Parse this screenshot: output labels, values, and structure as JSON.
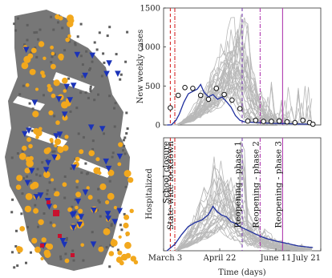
{
  "figure": {
    "map_panel": {
      "legend_items": [
        "gray-cells",
        "orange-circles",
        "blue-triangles",
        "red-squares"
      ],
      "colors": {
        "land": "#777777",
        "orange": "#f2a81d",
        "blue": "#1b33b8",
        "red": "#c8102e"
      }
    }
  },
  "chart_data": [
    {
      "type": "line",
      "ylabel": "New weekly cases",
      "ylim": [
        0,
        1500
      ],
      "yticks": [
        "0",
        "500",
        "1000",
        "1500"
      ],
      "x_domain_days": [
        0,
        133
      ],
      "colors": {
        "ensemble": "#b8b8b8",
        "mean": "#1f2f9e",
        "observed": "#111111"
      },
      "mean_series": [
        [
          3,
          0
        ],
        [
          7,
          2
        ],
        [
          11,
          60
        ],
        [
          14,
          140
        ],
        [
          18,
          290
        ],
        [
          22,
          400
        ],
        [
          26,
          430
        ],
        [
          30,
          460
        ],
        [
          33,
          520
        ],
        [
          36,
          420
        ],
        [
          40,
          360
        ],
        [
          44,
          390
        ],
        [
          48,
          330
        ],
        [
          52,
          360
        ],
        [
          56,
          300
        ],
        [
          60,
          230
        ],
        [
          64,
          120
        ],
        [
          68,
          60
        ],
        [
          72,
          40
        ],
        [
          78,
          35
        ],
        [
          85,
          30
        ],
        [
          92,
          25
        ],
        [
          99,
          20
        ],
        [
          106,
          18
        ],
        [
          113,
          15
        ],
        [
          120,
          12
        ],
        [
          127,
          10
        ],
        [
          133,
          5
        ]
      ],
      "observed_points": [
        [
          6,
          220
        ],
        [
          13,
          380
        ],
        [
          19,
          480
        ],
        [
          26,
          470
        ],
        [
          33,
          380
        ],
        [
          40,
          330
        ],
        [
          47,
          470
        ],
        [
          54,
          390
        ],
        [
          61,
          320
        ],
        [
          68,
          210
        ],
        [
          75,
          50
        ],
        [
          82,
          60
        ],
        [
          89,
          45
        ],
        [
          96,
          45
        ],
        [
          103,
          50
        ],
        [
          110,
          40
        ],
        [
          117,
          30
        ],
        [
          124,
          60
        ],
        [
          130,
          30
        ],
        [
          133,
          10
        ]
      ],
      "vlines": [
        {
          "day": 6,
          "color": "#d62728",
          "style": "dashed"
        },
        {
          "day": 10,
          "color": "#d62728",
          "style": "dashdot"
        },
        {
          "day": 70,
          "color": "#7b3fb0",
          "style": "dashed"
        },
        {
          "day": 86,
          "color": "#b03bb0",
          "style": "dashdot"
        },
        {
          "day": 106,
          "color": "#b03bb0",
          "style": "solid"
        }
      ]
    },
    {
      "type": "line",
      "ylabel": "Hospitalized",
      "xlabel": "Time (days)",
      "xtick_labels": [
        "March 3",
        "April 22",
        "June 11",
        "July 21"
      ],
      "xtick_days": [
        0,
        50,
        100,
        140
      ],
      "annotations": [
        {
          "text": "School closure",
          "day": 6
        },
        {
          "text": "State-wide lockdown",
          "day": 10
        },
        {
          "text": "Reopening - phase 1",
          "day": 70
        },
        {
          "text": "Reopening - phase 2",
          "day": 86
        },
        {
          "text": "Reopening - phase 3",
          "day": 106
        }
      ],
      "mean_series": [
        [
          3,
          0
        ],
        [
          10,
          8
        ],
        [
          16,
          20
        ],
        [
          22,
          30
        ],
        [
          28,
          35
        ],
        [
          34,
          38
        ],
        [
          40,
          45
        ],
        [
          44,
          55
        ],
        [
          48,
          48
        ],
        [
          52,
          44
        ],
        [
          56,
          42
        ],
        [
          60,
          36
        ],
        [
          64,
          34
        ],
        [
          68,
          30
        ],
        [
          74,
          26
        ],
        [
          80,
          22
        ],
        [
          86,
          18
        ],
        [
          92,
          15
        ],
        [
          100,
          12
        ],
        [
          110,
          9
        ],
        [
          120,
          6
        ],
        [
          133,
          4
        ]
      ],
      "ymax_units": 140,
      "colors": {
        "ensemble": "#b8b8b8",
        "mean": "#1f2f9e"
      }
    }
  ]
}
